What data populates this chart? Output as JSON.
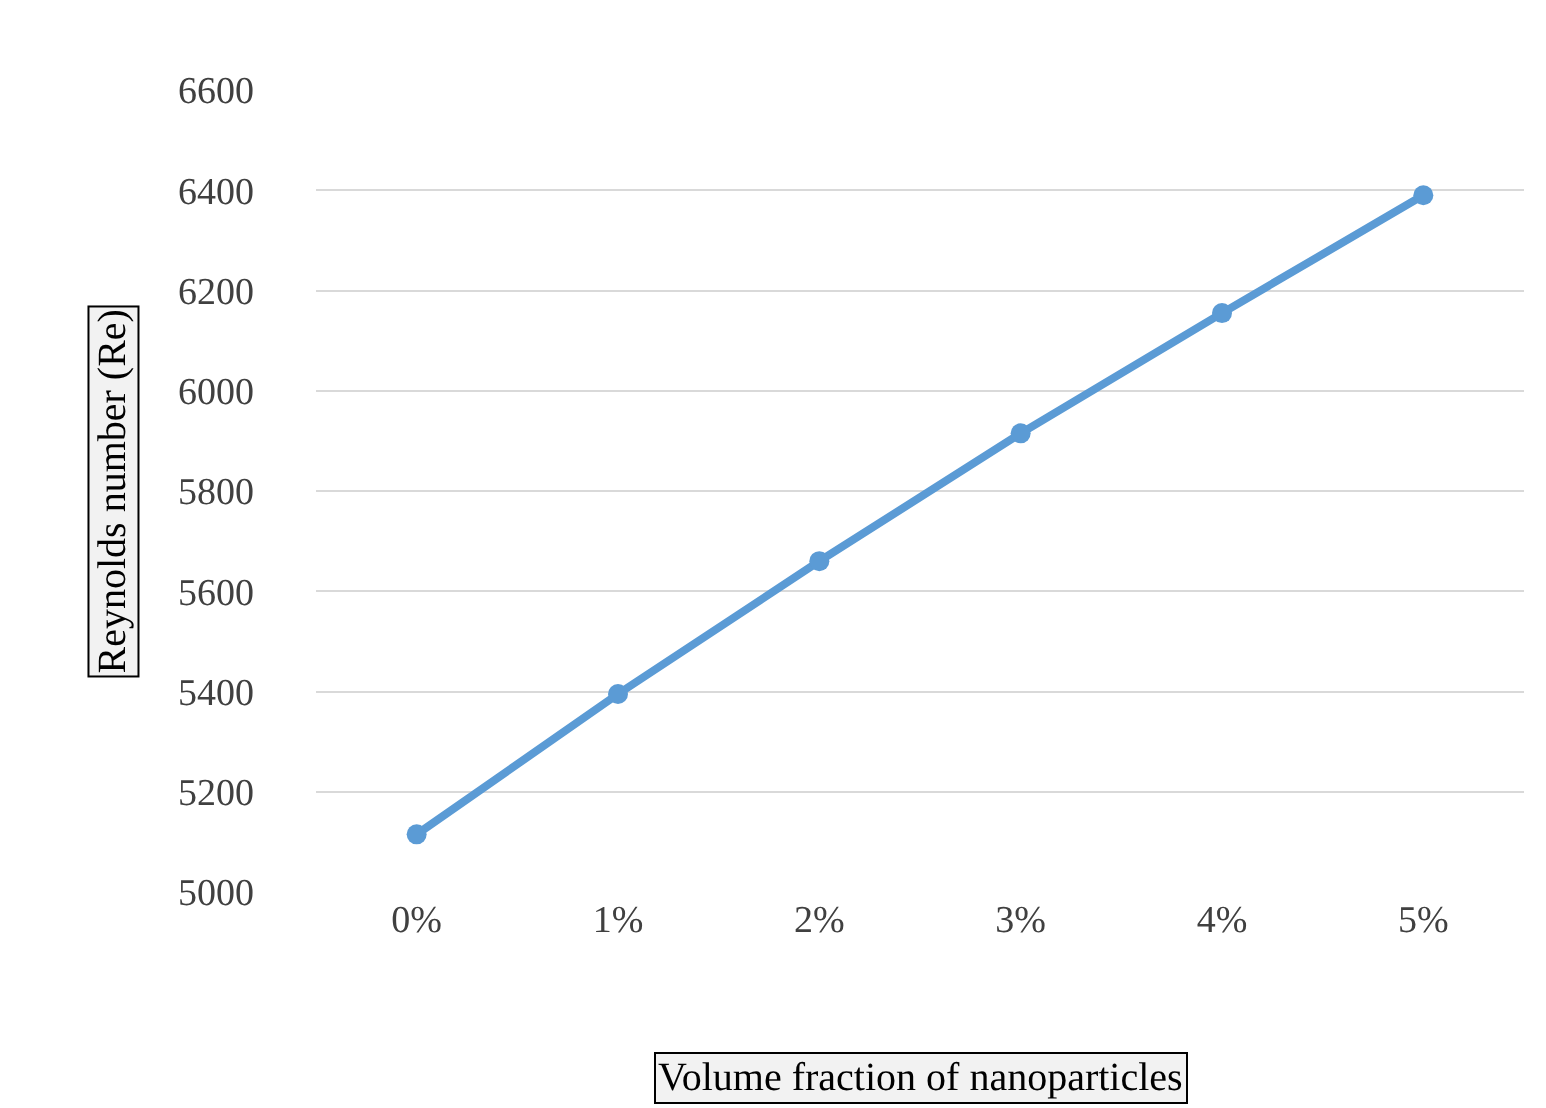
{
  "chart_data": {
    "type": "line",
    "xlabel": "Volume fraction of nanoparticles",
    "ylabel": "Reynolds number (Re)",
    "categories": [
      "0%",
      "1%",
      "2%",
      "3%",
      "4%",
      "5%"
    ],
    "series": [
      {
        "color": "#5b9bd5",
        "values": [
          5115,
          5395,
          5660,
          5915,
          6155,
          6390
        ]
      }
    ],
    "ylim": [
      5000,
      6600
    ],
    "yticks": [
      5000,
      5200,
      5400,
      5600,
      5800,
      6000,
      6200,
      6400,
      6600
    ],
    "grid": "y",
    "legend": false,
    "marker": "circle",
    "line_style": "solid"
  }
}
